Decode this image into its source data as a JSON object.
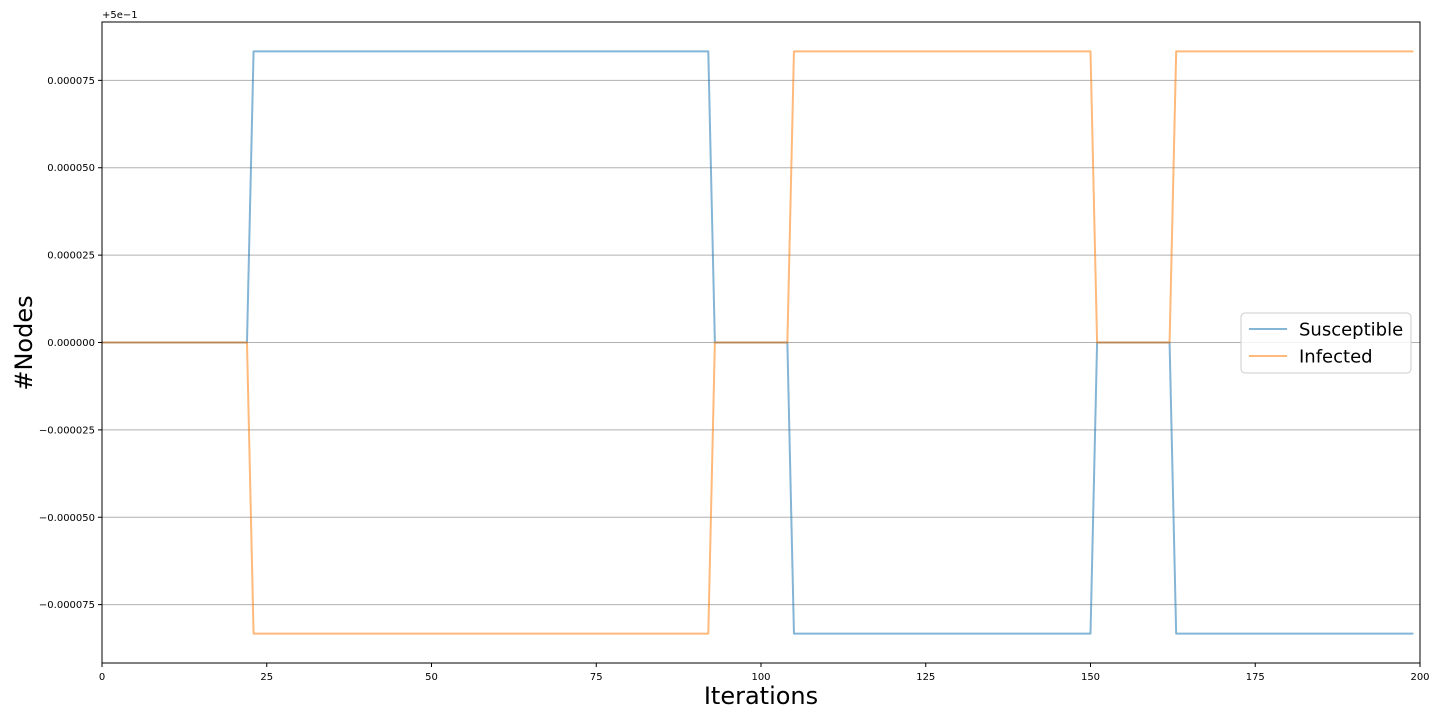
{
  "chart_data": {
    "type": "line",
    "title": "",
    "xlabel": "Iterations",
    "ylabel": "#Nodes",
    "y_offset_label": "+5e−1",
    "xlim": [
      0,
      200
    ],
    "ylim": [
      -9.17e-05,
      9.17e-05
    ],
    "x_ticks": [
      0,
      25,
      50,
      75,
      100,
      125,
      150,
      175,
      200
    ],
    "y_ticks": [
      -7.5e-05,
      -5e-05,
      -2.5e-05,
      0,
      2.5e-05,
      5e-05,
      7.5e-05
    ],
    "y_tick_labels": [
      "−0.000075",
      "−0.000050",
      "−0.000025",
      "0.000000",
      "0.000025",
      "0.000050",
      "0.000075"
    ],
    "grid": "y",
    "legend_position": "center-right",
    "series": [
      {
        "name": "Susceptible",
        "color": "#1f77b4",
        "points": [
          [
            0,
            0
          ],
          [
            22,
            0
          ],
          [
            23,
            8.33e-05
          ],
          [
            92,
            8.33e-05
          ],
          [
            93,
            0
          ],
          [
            104,
            0
          ],
          [
            105,
            -8.33e-05
          ],
          [
            150,
            -8.33e-05
          ],
          [
            151,
            0
          ],
          [
            162,
            0
          ],
          [
            163,
            -8.33e-05
          ],
          [
            199,
            -8.33e-05
          ]
        ]
      },
      {
        "name": "Infected",
        "color": "#ff7f0e",
        "points": [
          [
            0,
            0
          ],
          [
            22,
            0
          ],
          [
            23,
            -8.33e-05
          ],
          [
            92,
            -8.33e-05
          ],
          [
            93,
            0
          ],
          [
            104,
            0
          ],
          [
            105,
            8.33e-05
          ],
          [
            150,
            8.33e-05
          ],
          [
            151,
            0
          ],
          [
            162,
            0
          ],
          [
            163,
            8.33e-05
          ],
          [
            199,
            8.33e-05
          ]
        ]
      }
    ]
  }
}
